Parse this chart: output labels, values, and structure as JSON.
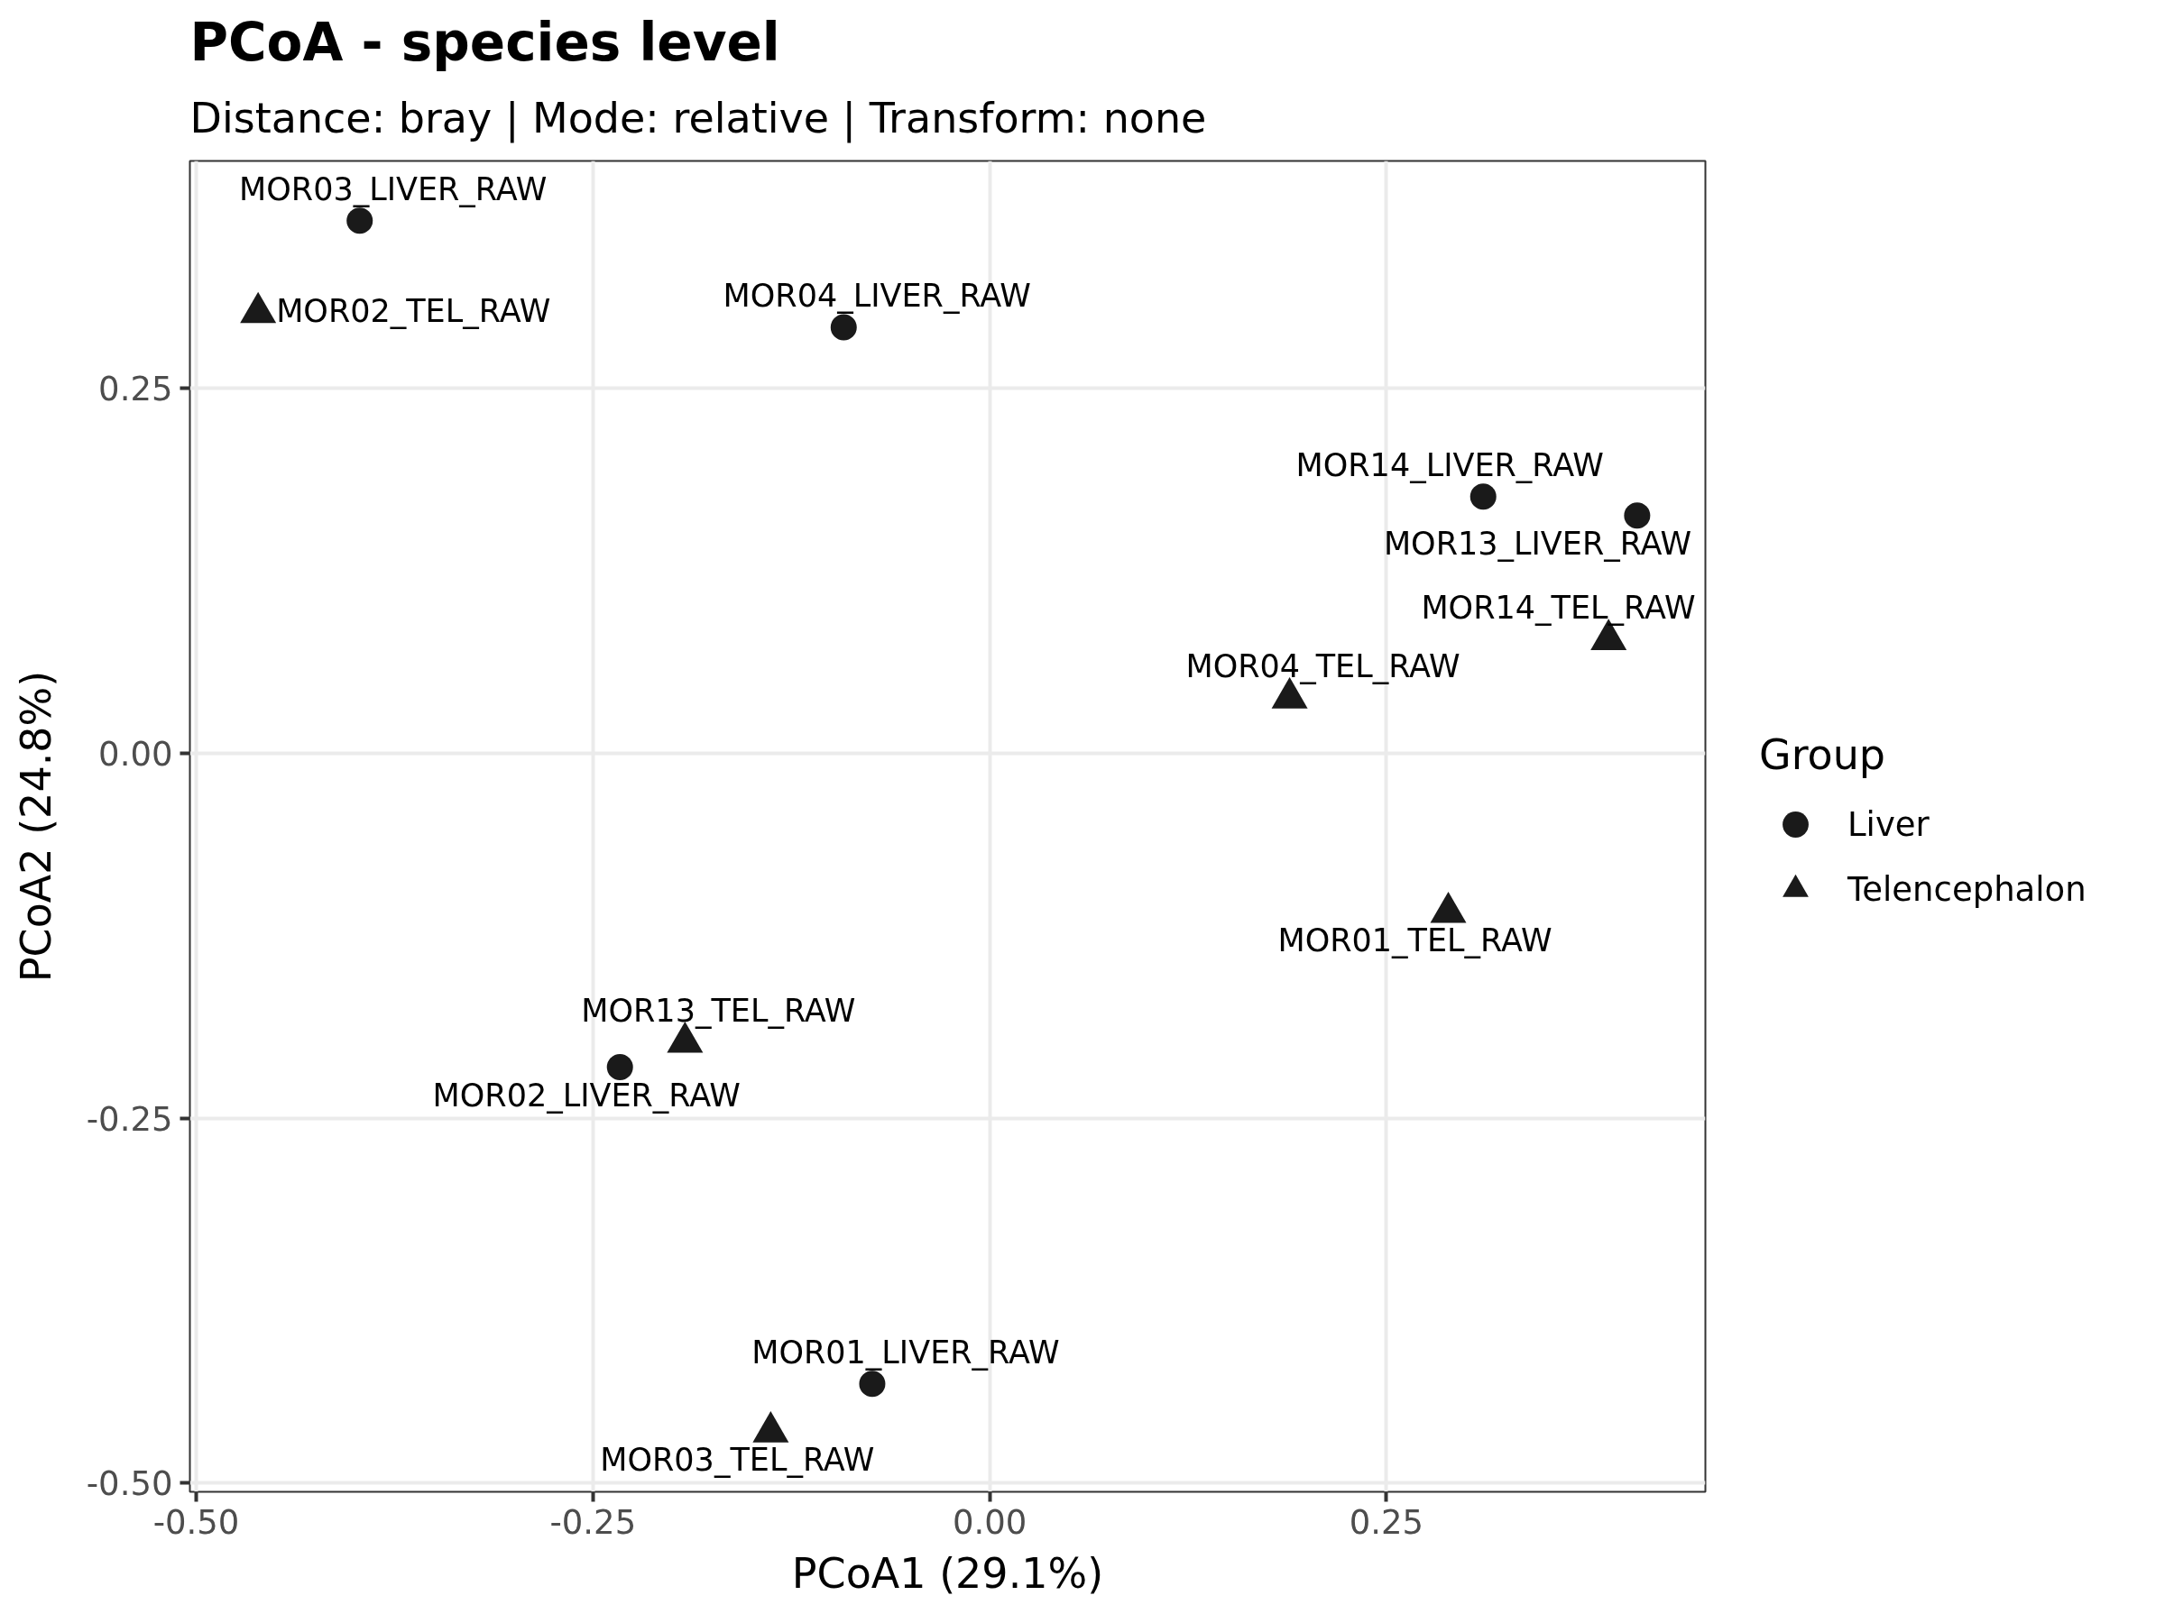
{
  "chart_data": {
    "type": "scatter",
    "title": "PCoA - species level",
    "subtitle": "Distance: bray | Mode: relative | Transform: none",
    "xlabel": "PCoA1 (29.1%)",
    "ylabel": "PCoA2 (24.8%)",
    "legend_title": "Group",
    "xlim": [
      -0.504,
      0.451
    ],
    "ylim": [
      -0.506,
      0.406
    ],
    "xticks": [
      {
        "value": -0.5,
        "label": "-0.50"
      },
      -0.25,
      {
        "value": 0,
        "label": "0.00"
      },
      0.25
    ],
    "yticks": [
      {
        "value": -0.5,
        "label": "-0.50"
      },
      -0.25,
      {
        "value": 0,
        "label": "0.00"
      },
      0.25
    ],
    "grid": true,
    "legend": "right",
    "series": [
      {
        "name": "Liver",
        "color": "#1a1a1a",
        "marker": "circle",
        "x": [
          -0.397,
          -0.092,
          0.311,
          0.408,
          -0.233,
          -0.074
        ],
        "values": [
          0.365,
          0.292,
          0.176,
          0.163,
          -0.215,
          -0.432
        ],
        "value_labels": [
          "MOR03_LIVER_RAW",
          "MOR04_LIVER_RAW",
          "MOR14_LIVER_RAW",
          "MOR13_LIVER_RAW",
          "MOR02_LIVER_RAW",
          "MOR01_LIVER_RAW"
        ]
      },
      {
        "name": "Telencephalon",
        "color": "#1a1a1a",
        "marker": "triangle",
        "x": [
          -0.461,
          0.39,
          0.189,
          0.289,
          -0.192,
          -0.138
        ],
        "values": [
          0.302,
          0.078,
          0.038,
          -0.109,
          -0.198,
          -0.465
        ],
        "value_labels": [
          "MOR02_TEL_RAW",
          "MOR14_TEL_RAW",
          "MOR04_TEL_RAW",
          "MOR01_TEL_RAW",
          "MOR13_TEL_RAW",
          "MOR03_TEL_RAW"
        ]
      }
    ]
  }
}
